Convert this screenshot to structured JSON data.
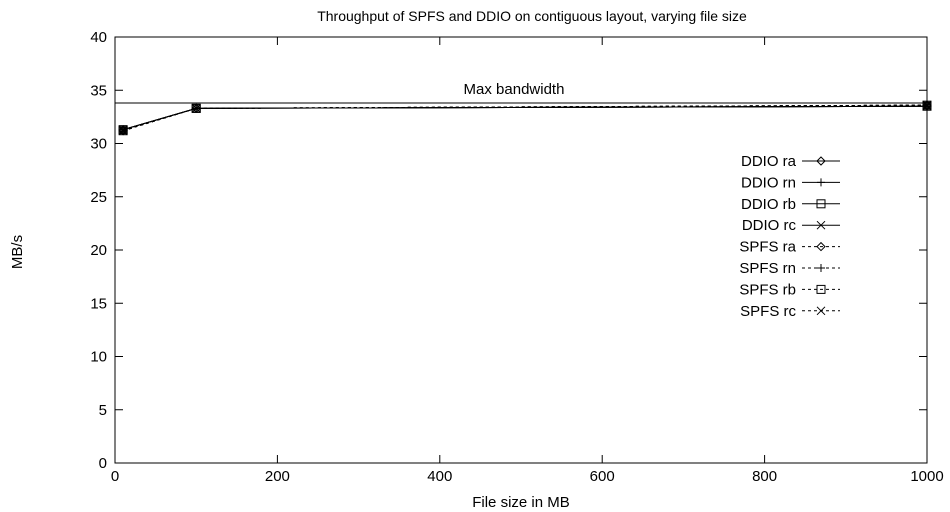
{
  "chart_data": {
    "type": "line",
    "title": "Throughput of SPFS and DDIO on contiguous layout, varying file size",
    "xlabel": "File size in MB",
    "ylabel": "MB/s",
    "xlim": [
      0,
      1000
    ],
    "ylim": [
      0,
      40
    ],
    "x_ticks": [
      "0",
      "200",
      "400",
      "600",
      "800",
      "1000"
    ],
    "y_ticks": [
      "0",
      "5",
      "10",
      "15",
      "20",
      "25",
      "30",
      "35",
      "40"
    ],
    "grid": false,
    "legend_position": "right",
    "annotation": {
      "label": "Max bandwidth",
      "value": 33.8
    },
    "series": [
      {
        "name": "DDIO ra",
        "marker": "diamond",
        "dash": "solid",
        "x": [
          10,
          100,
          1000
        ],
        "y": [
          31.3,
          33.3,
          33.5
        ]
      },
      {
        "name": "DDIO rn",
        "marker": "plus",
        "dash": "solid",
        "x": [
          10,
          100,
          1000
        ],
        "y": [
          31.3,
          33.3,
          33.5
        ]
      },
      {
        "name": "DDIO rb",
        "marker": "square",
        "dash": "solid",
        "x": [
          10,
          100,
          1000
        ],
        "y": [
          31.3,
          33.3,
          33.5
        ]
      },
      {
        "name": "DDIO rc",
        "marker": "cross",
        "dash": "solid",
        "x": [
          10,
          100,
          1000
        ],
        "y": [
          31.3,
          33.3,
          33.5
        ]
      },
      {
        "name": "SPFS ra",
        "marker": "diamond",
        "dash": "dashed",
        "x": [
          10,
          100,
          1000
        ],
        "y": [
          31.2,
          33.3,
          33.6
        ]
      },
      {
        "name": "SPFS rn",
        "marker": "plus",
        "dash": "dashed",
        "x": [
          10,
          100,
          1000
        ],
        "y": [
          31.2,
          33.3,
          33.6
        ]
      },
      {
        "name": "SPFS rb",
        "marker": "square",
        "dash": "dashed",
        "x": [
          10,
          100,
          1000
        ],
        "y": [
          31.2,
          33.3,
          33.6
        ]
      },
      {
        "name": "SPFS rc",
        "marker": "cross",
        "dash": "dashed",
        "x": [
          10,
          100,
          1000
        ],
        "y": [
          31.2,
          33.3,
          33.6
        ]
      }
    ]
  }
}
